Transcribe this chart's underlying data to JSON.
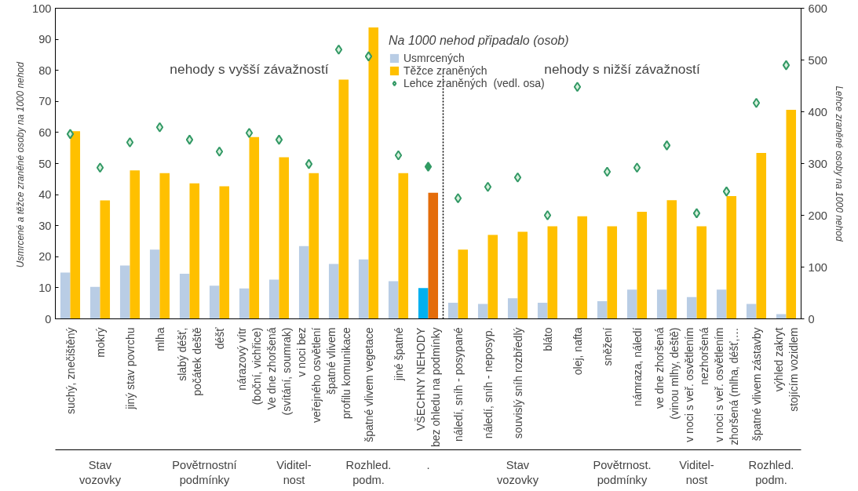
{
  "chart_data": {
    "type": "bar",
    "categories": [
      "suchý, znečištěný",
      "mokrý",
      "jiný stav povrchu",
      "mlha",
      "slabý déšť,\npočátek deště",
      "déšť",
      "nárazový vítr\n(boční, vichřice)",
      "Ve dne zhoršená\n(svítání, soumrak)",
      "v noci bez\nveřejného osvětlení",
      "špatné vlivem\nprofilu komunikace",
      "špatné vlivem vegetace",
      "jiné špatné",
      "VŠECHNY NEHODY\nbez ohledu na podmínky",
      "náledí, sníh - posypané",
      "náledí, sníh - neposyp.",
      "souvislý sníh rozbředlý",
      "bláto",
      "olej, nafta",
      "sněžení",
      "námraza, náledí",
      "ve dne zhoršená\n(vinou mlhy, deště)",
      "v noci s veř. osvětlením\nnezhoršená",
      "v noci s veř. osvětlením\nzhoršená (mlha, déšť,…",
      "špatné vlivem zástavby",
      "výhled zakryt\nstojícím vozidlem"
    ],
    "series": [
      {
        "name": "Usmrcených",
        "color": "#b9cde5",
        "colors": [
          "#b9cde5",
          "#b9cde5",
          "#b9cde5",
          "#b9cde5",
          "#b9cde5",
          "#b9cde5",
          "#b9cde5",
          "#b9cde5",
          "#b9cde5",
          "#b9cde5",
          "#b9cde5",
          "#b9cde5",
          "#00b0f0",
          "#b9cde5",
          "#b9cde5",
          "#b9cde5",
          "#b9cde5",
          "#b9cde5",
          "#b9cde5",
          "#b9cde5",
          "#b9cde5",
          "#b9cde5",
          "#b9cde5",
          "#b9cde5",
          "#b9cde5"
        ],
        "values": [
          14.9,
          10.3,
          17.2,
          22.3,
          14.5,
          10.7,
          9.8,
          12.6,
          23.4,
          17.7,
          19.1,
          12.1,
          9.9,
          5.2,
          4.8,
          6.6,
          5.2,
          null,
          5.7,
          9.4,
          9.4,
          7.0,
          9.4,
          4.8,
          1.5
        ]
      },
      {
        "name": "Těžce zraněných",
        "color": "#ffc000",
        "colors": [
          "#ffc000",
          "#ffc000",
          "#ffc000",
          "#ffc000",
          "#ffc000",
          "#ffc000",
          "#ffc000",
          "#ffc000",
          "#ffc000",
          "#ffc000",
          "#ffc000",
          "#ffc000",
          "#e46c0a",
          "#ffc000",
          "#ffc000",
          "#ffc000",
          "#ffc000",
          "#ffc000",
          "#ffc000",
          "#ffc000",
          "#ffc000",
          "#ffc000",
          "#ffc000",
          "#ffc000",
          "#ffc000"
        ],
        "values": [
          60.4,
          38.1,
          47.8,
          46.9,
          43.6,
          42.7,
          58.5,
          52.0,
          46.9,
          77.0,
          93.8,
          46.9,
          40.6,
          22.3,
          27.0,
          28.0,
          29.8,
          33.0,
          29.8,
          34.5,
          38.2,
          29.8,
          39.5,
          53.4,
          67.3
        ]
      },
      {
        "name": "Lehce zraněných  (vedl. osa)",
        "type": "scatter",
        "axis": "y2",
        "color": "#339966",
        "colors": [
          "#d8f0dc",
          "#d8f0dc",
          "#d8f0dc",
          "#d8f0dc",
          "#d8f0dc",
          "#d8f0dc",
          "#d8f0dc",
          "#d8f0dc",
          "#d8f0dc",
          "#d8f0dc",
          "#d8f0dc",
          "#d8f0dc",
          "#2e9e5e",
          "#d8f0dc",
          "#d8f0dc",
          "#d8f0dc",
          "#d8f0dc",
          "#d8f0dc",
          "#d8f0dc",
          "#d8f0dc",
          "#d8f0dc",
          "#d8f0dc",
          "#d8f0dc",
          "#d8f0dc",
          "#d8f0dc"
        ],
        "values": [
          357,
          292,
          341,
          370,
          346,
          323,
          359,
          346,
          299,
          520,
          507,
          316,
          294,
          233,
          255,
          273,
          200,
          448,
          284,
          292,
          335,
          204,
          246,
          417,
          490
        ]
      }
    ],
    "marker": "diamond",
    "ylabel": "Usmrcené a těžce zraněné  osoby na 1000 nehod",
    "y2label": "Lehce zraněné osoby na 1000 nehod",
    "legend_title": "Na 1000 nehod připadalo (osob)",
    "legend": "top",
    "ylim": [
      0,
      100
    ],
    "yticks": [
      0,
      10,
      20,
      30,
      40,
      50,
      60,
      70,
      80,
      90,
      100
    ],
    "y2lim": [
      0,
      600
    ],
    "y2ticks": [
      0,
      100,
      200,
      300,
      400,
      500,
      600
    ],
    "grid": false,
    "annotations": [
      "nehody s vyšší závažností",
      "nehody s nižší závažností",
      "Stav\nvozovky",
      "Povětrnostní\npodmínky",
      "Viditel-\nnost",
      "Rozhled.\npodm.",
      ".",
      "Stav\nvozovky",
      "Povětrnost.\npodmínky",
      "Viditel-\nnost",
      "Rozhled.\npodm."
    ]
  }
}
